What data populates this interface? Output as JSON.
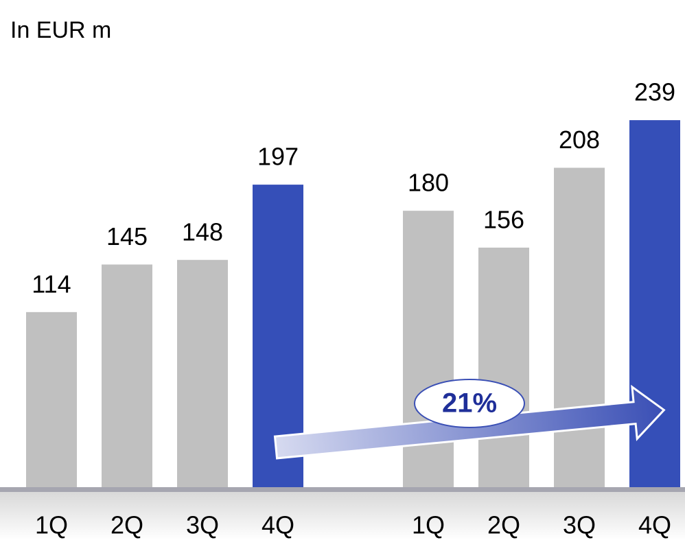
{
  "chart_data": {
    "type": "bar",
    "title": "In EUR m",
    "categories": [
      "1Q",
      "2Q",
      "3Q",
      "4Q",
      "1Q",
      "2Q",
      "3Q",
      "4Q"
    ],
    "values": [
      114,
      145,
      148,
      197,
      180,
      156,
      208,
      239
    ],
    "colors": [
      "#c0c0c0",
      "#c0c0c0",
      "#c0c0c0",
      "#354fb8",
      "#c0c0c0",
      "#c0c0c0",
      "#c0c0c0",
      "#354fb8"
    ],
    "annotation": "21%"
  }
}
